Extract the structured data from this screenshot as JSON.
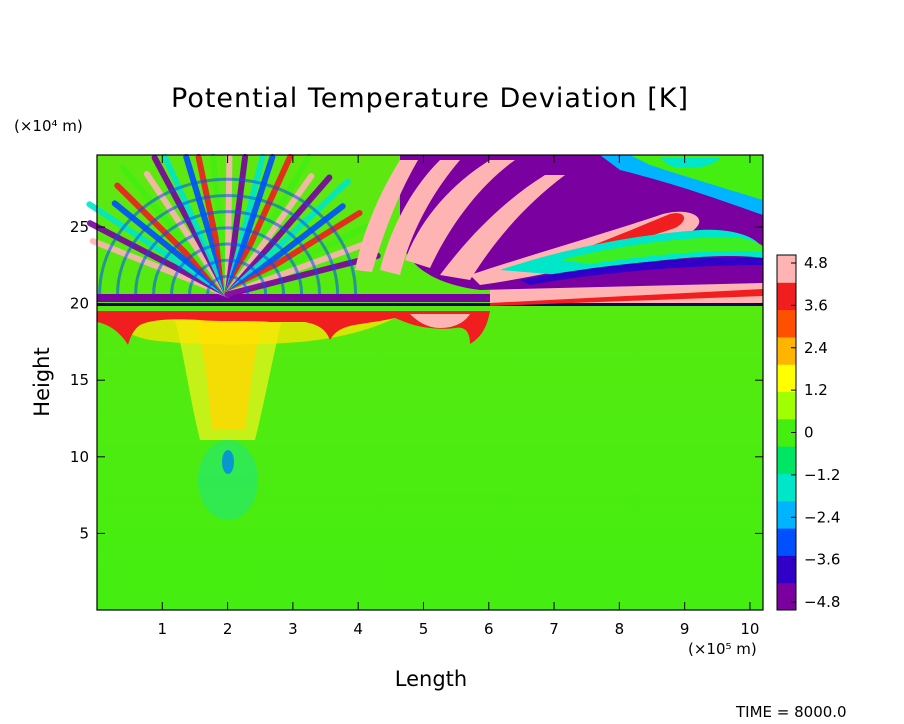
{
  "chart_data": {
    "type": "heatmap",
    "title": "Potential Temperature Deviation [K]",
    "xlabel": "Length",
    "ylabel": "Height",
    "x_unit": "(×10⁵ m)",
    "y_unit": "(×10⁴ m)",
    "xlim": [
      0,
      10.2
    ],
    "ylim": [
      0,
      29.7
    ],
    "x_ticks": [
      1,
      2,
      3,
      4,
      5,
      6,
      7,
      8,
      9,
      10
    ],
    "y_ticks": [
      5,
      10,
      15,
      20,
      25
    ],
    "colorbar": {
      "min": -4.8,
      "max": 4.8,
      "ticks": [
        4.8,
        3.6,
        2.4,
        1.2,
        0,
        -1.2,
        -2.4,
        -3.6,
        -4.8
      ],
      "tick_labels": [
        "4.8",
        "3.6",
        "2.4",
        "1.2",
        "0",
        "−1.2",
        "−2.4",
        "−3.6",
        "−4.8"
      ],
      "colors": [
        "#7a00a0",
        "#3000c8",
        "#0050ff",
        "#00b4ff",
        "#00e6c8",
        "#00e664",
        "#44ee10",
        "#a0ff00",
        "#ffff00",
        "#ffb400",
        "#ff5000",
        "#f01e1e",
        "#ffb4b4"
      ]
    },
    "features": [
      {
        "name": "tropopause_layer",
        "height": 20.2,
        "note": "strong banded layer near 19.5–21"
      },
      {
        "name": "convective_source",
        "x": 2.0,
        "heights": [
          9,
          20
        ]
      },
      {
        "name": "gravity_wave_fan",
        "heights": [
          21,
          29.7
        ]
      }
    ]
  },
  "footer": {
    "time_text": "TIME =  8000.0"
  }
}
